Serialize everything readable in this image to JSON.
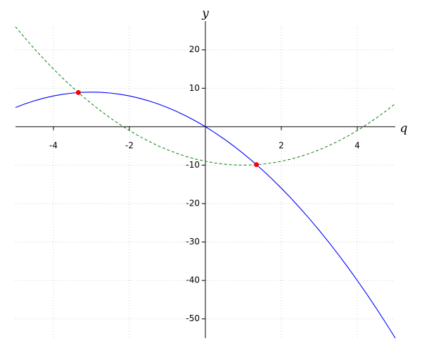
{
  "chart_data": {
    "type": "line",
    "x_label": "q",
    "y_label": "y",
    "xlim": [
      -5,
      5
    ],
    "ylim": [
      -55,
      26
    ],
    "xticks": [
      -4,
      -2,
      2,
      4
    ],
    "yticks": [
      -50,
      -40,
      -30,
      -20,
      -10,
      10,
      20
    ],
    "grid": true,
    "series": [
      {
        "color": "#0000ff",
        "style": "solid",
        "x": [
          -5,
          -4.75,
          -4.5,
          -4.25,
          -4,
          -3.75,
          -3.5,
          -3.25,
          -3,
          -2.75,
          -2.5,
          -2.25,
          -2,
          -1.75,
          -1.5,
          -1.25,
          -1,
          -0.75,
          -0.5,
          -0.25,
          0,
          0.25,
          0.5,
          0.75,
          1,
          1.25,
          1.5,
          1.75,
          2,
          2.25,
          2.5,
          2.75,
          3,
          3.25,
          3.5,
          3.75,
          4,
          4.25,
          4.5,
          4.75,
          5
        ],
        "values": [
          5,
          5.9375,
          6.75,
          7.4375,
          8,
          8.4375,
          8.75,
          8.9375,
          9,
          8.9375,
          8.75,
          8.4375,
          8,
          7.4375,
          6.75,
          5.9375,
          5,
          3.9375,
          2.75,
          1.4375,
          0,
          -1.5625,
          -3.25,
          -5.0625,
          -7,
          -9.0625,
          -11.25,
          -13.5625,
          -16,
          -18.5625,
          -21.25,
          -24.0625,
          -27,
          -30.0625,
          -33.25,
          -36.5625,
          -40,
          -43.5625,
          -47.25,
          -51.0625,
          -55
        ]
      },
      {
        "color": "#228b22",
        "style": "dashed",
        "x": [
          -5,
          -4.75,
          -4.5,
          -4.25,
          -4,
          -3.75,
          -3.5,
          -3.25,
          -3,
          -2.75,
          -2.5,
          -2.25,
          -2,
          -1.75,
          -1.5,
          -1.25,
          -1,
          -0.75,
          -0.5,
          -0.25,
          0,
          0.25,
          0.5,
          0.75,
          1,
          1.25,
          1.5,
          1.75,
          2,
          2.25,
          2.5,
          2.75,
          3,
          3.25,
          3.5,
          3.75,
          4,
          4.25,
          4.5,
          4.75,
          5
        ],
        "values": [
          26,
          23.0625,
          20.25,
          17.5625,
          15,
          12.5625,
          10.25,
          8.0625,
          6,
          4.0625,
          2.25,
          0.5625,
          -1,
          -2.4375,
          -3.75,
          -4.9375,
          -6,
          -6.9375,
          -7.75,
          -8.4375,
          -9,
          -9.4375,
          -9.75,
          -9.9375,
          -10,
          -9.9375,
          -9.75,
          -9.4375,
          -9,
          -8.4375,
          -7.75,
          -6.9375,
          -6,
          -4.9375,
          -3.75,
          -2.4375,
          -1,
          0.5625,
          2.25,
          4.0625,
          6
        ]
      },
      {
        "color": "#ff0000",
        "style": "markers",
        "x": [
          -3.345,
          1.345
        ],
        "values": [
          8.881,
          -9.881
        ]
      }
    ]
  }
}
